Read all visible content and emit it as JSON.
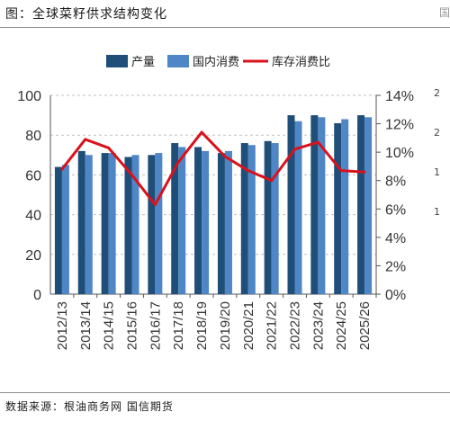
{
  "header": {
    "title": "图：全球菜籽供求结构变化",
    "corner_mark": "国"
  },
  "footer": {
    "source": "数据来源：根油商务网 国信期货"
  },
  "right_clip": {
    "ticks": [
      "2",
      "2",
      "1",
      "1"
    ]
  },
  "colors": {
    "production": "#1f4e79",
    "consumption": "#4f86c6",
    "ratio": "#d9121b",
    "grid": "#bfbfbf",
    "axis_text": "#333333"
  },
  "chart_data": {
    "type": "bar",
    "title": "",
    "xlabel": "",
    "ylabel": "",
    "categories": [
      "2012/13",
      "2013/14",
      "2014/15",
      "2015/16",
      "2016/17",
      "2017/18",
      "2018/19",
      "2019/20",
      "2020/21",
      "2021/22",
      "2022/23",
      "2023/24",
      "2024/25",
      "2025/26"
    ],
    "series": [
      {
        "name": "产量",
        "axis": "left",
        "kind": "bar",
        "values": [
          64,
          72,
          71,
          69,
          70,
          76,
          74,
          71,
          76,
          77,
          90,
          90,
          86,
          90
        ]
      },
      {
        "name": "国内消费",
        "axis": "left",
        "kind": "bar",
        "values": [
          65,
          70,
          71,
          70,
          71,
          74,
          72,
          72,
          75,
          76,
          87,
          89,
          88,
          89
        ]
      },
      {
        "name": "库存消费比",
        "axis": "right",
        "kind": "line",
        "values": [
          8.8,
          10.9,
          10.3,
          8.4,
          6.3,
          9.3,
          11.4,
          9.7,
          8.7,
          8.0,
          10.2,
          10.7,
          8.7,
          8.6
        ]
      }
    ],
    "ylim": [
      0,
      100
    ],
    "yticks": [
      "0",
      "20",
      "40",
      "60",
      "80",
      "100"
    ],
    "y2lim": [
      0,
      14
    ],
    "y2ticks": [
      "0%",
      "2%",
      "4%",
      "6%",
      "8%",
      "10%",
      "12%",
      "14%"
    ],
    "grid": true,
    "legend_position": "top-center"
  }
}
